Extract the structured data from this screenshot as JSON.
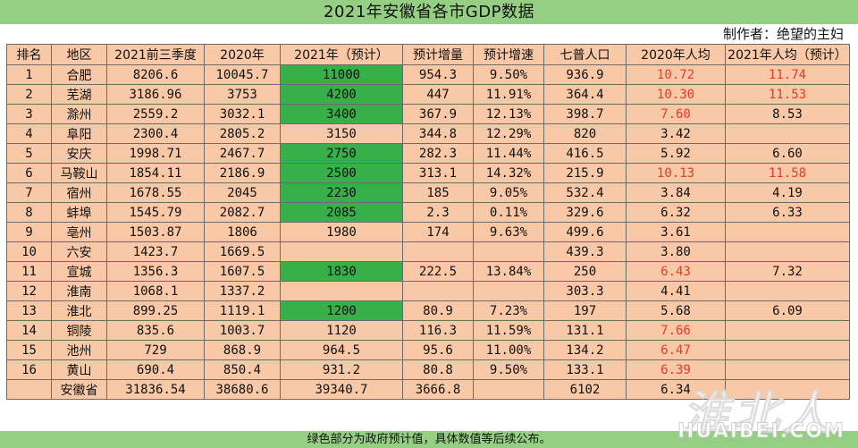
{
  "title": "2021年安徽省各市GDP数据",
  "author": "制作者：绝望的主妇",
  "headers": [
    "排名",
    "地区",
    "2021前三季度",
    "2020年",
    "2021年（预计）",
    "预计增量",
    "预计增速",
    "七普人口",
    "2020年人均",
    "2021年人均（预计）"
  ],
  "rows": [
    {
      "rank": "1",
      "region": "合肥",
      "q3": "8206.6",
      "y2020": "10045.7",
      "y2021": "11000",
      "inc": "954.3",
      "growth": "9.50%",
      "pop": "936.9",
      "pc2020": "10.72",
      "pc2021": "11.74",
      "green": true,
      "red2020": true,
      "red2021": true
    },
    {
      "rank": "2",
      "region": "芜湖",
      "q3": "3186.96",
      "y2020": "3753",
      "y2021": "4200",
      "inc": "447",
      "growth": "11.91%",
      "pop": "364.4",
      "pc2020": "10.30",
      "pc2021": "11.53",
      "green": true,
      "red2020": true,
      "red2021": true
    },
    {
      "rank": "3",
      "region": "滁州",
      "q3": "2559.2",
      "y2020": "3032.1",
      "y2021": "3400",
      "inc": "367.9",
      "growth": "12.13%",
      "pop": "398.7",
      "pc2020": "7.60",
      "pc2021": "8.53",
      "green": true,
      "red2020": true,
      "red2021": false
    },
    {
      "rank": "4",
      "region": "阜阳",
      "q3": "2300.4",
      "y2020": "2805.2",
      "y2021": "3150",
      "inc": "344.8",
      "growth": "12.29%",
      "pop": "820",
      "pc2020": "3.42",
      "pc2021": "",
      "green": false,
      "red2020": false,
      "red2021": false
    },
    {
      "rank": "5",
      "region": "安庆",
      "q3": "1998.71",
      "y2020": "2467.7",
      "y2021": "2750",
      "inc": "282.3",
      "growth": "11.44%",
      "pop": "416.5",
      "pc2020": "5.92",
      "pc2021": "6.60",
      "green": true,
      "red2020": false,
      "red2021": false
    },
    {
      "rank": "6",
      "region": "马鞍山",
      "q3": "1854.11",
      "y2020": "2186.9",
      "y2021": "2500",
      "inc": "313.1",
      "growth": "14.32%",
      "pop": "215.9",
      "pc2020": "10.13",
      "pc2021": "11.58",
      "green": true,
      "red2020": true,
      "red2021": true
    },
    {
      "rank": "7",
      "region": "宿州",
      "q3": "1678.55",
      "y2020": "2045",
      "y2021": "2230",
      "inc": "185",
      "growth": "9.05%",
      "pop": "532.4",
      "pc2020": "3.84",
      "pc2021": "4.19",
      "green": true,
      "red2020": false,
      "red2021": false
    },
    {
      "rank": "8",
      "region": "蚌埠",
      "q3": "1545.79",
      "y2020": "2082.7",
      "y2021": "2085",
      "inc": "2.3",
      "growth": "0.11%",
      "pop": "329.6",
      "pc2020": "6.32",
      "pc2021": "6.33",
      "green": true,
      "red2020": false,
      "red2021": false
    },
    {
      "rank": "9",
      "region": "亳州",
      "q3": "1503.87",
      "y2020": "1806",
      "y2021": "1980",
      "inc": "174",
      "growth": "9.63%",
      "pop": "499.6",
      "pc2020": "3.61",
      "pc2021": "",
      "green": false,
      "red2020": false,
      "red2021": false
    },
    {
      "rank": "10",
      "region": "六安",
      "q3": "1423.7",
      "y2020": "1669.5",
      "y2021": "",
      "inc": "",
      "growth": "",
      "pop": "439.3",
      "pc2020": "3.80",
      "pc2021": "",
      "green": false,
      "red2020": false,
      "red2021": false
    },
    {
      "rank": "11",
      "region": "宣城",
      "q3": "1356.3",
      "y2020": "1607.5",
      "y2021": "1830",
      "inc": "222.5",
      "growth": "13.84%",
      "pop": "250",
      "pc2020": "6.43",
      "pc2021": "7.32",
      "green": true,
      "red2020": true,
      "red2021": false
    },
    {
      "rank": "12",
      "region": "淮南",
      "q3": "1068.1",
      "y2020": "1337.2",
      "y2021": "",
      "inc": "",
      "growth": "",
      "pop": "303.3",
      "pc2020": "4.41",
      "pc2021": "",
      "green": false,
      "red2020": false,
      "red2021": false
    },
    {
      "rank": "13",
      "region": "淮北",
      "q3": "899.25",
      "y2020": "1119.1",
      "y2021": "1200",
      "inc": "80.9",
      "growth": "7.23%",
      "pop": "197",
      "pc2020": "5.68",
      "pc2021": "6.09",
      "green": true,
      "red2020": false,
      "red2021": false
    },
    {
      "rank": "14",
      "region": "铜陵",
      "q3": "835.6",
      "y2020": "1003.7",
      "y2021": "1120",
      "inc": "116.3",
      "growth": "11.59%",
      "pop": "131.1",
      "pc2020": "7.66",
      "pc2021": "",
      "green": false,
      "red2020": true,
      "red2021": false
    },
    {
      "rank": "15",
      "region": "池州",
      "q3": "729",
      "y2020": "868.9",
      "y2021": "964.5",
      "inc": "95.6",
      "growth": "11.00%",
      "pop": "134.2",
      "pc2020": "6.47",
      "pc2021": "",
      "green": false,
      "red2020": true,
      "red2021": false
    },
    {
      "rank": "16",
      "region": "黄山",
      "q3": "690.4",
      "y2020": "850.4",
      "y2021": "931.2",
      "inc": "80.8",
      "growth": "9.50%",
      "pop": "133.1",
      "pc2020": "6.39",
      "pc2021": "",
      "green": false,
      "red2020": true,
      "red2021": false
    },
    {
      "rank": "",
      "region": "安徽省",
      "q3": "31836.54",
      "y2020": "38680.6",
      "y2021": "39340.7",
      "inc": "3666.8",
      "growth": "",
      "pop": "6102",
      "pc2020": "6.34",
      "pc2021": "",
      "green": false,
      "red2020": false,
      "red2021": false
    }
  ],
  "footer": "绿色部分为政府预计值，具体数值等后续公布。",
  "watermark": {
    "cn": "淮北人",
    "en": "HUAIBEI.COM"
  },
  "colors": {
    "header_band": "#95cf83",
    "cell_bg": "#f9c8a6",
    "green_cell": "#37b04a",
    "red_text": "#e43a2f"
  }
}
